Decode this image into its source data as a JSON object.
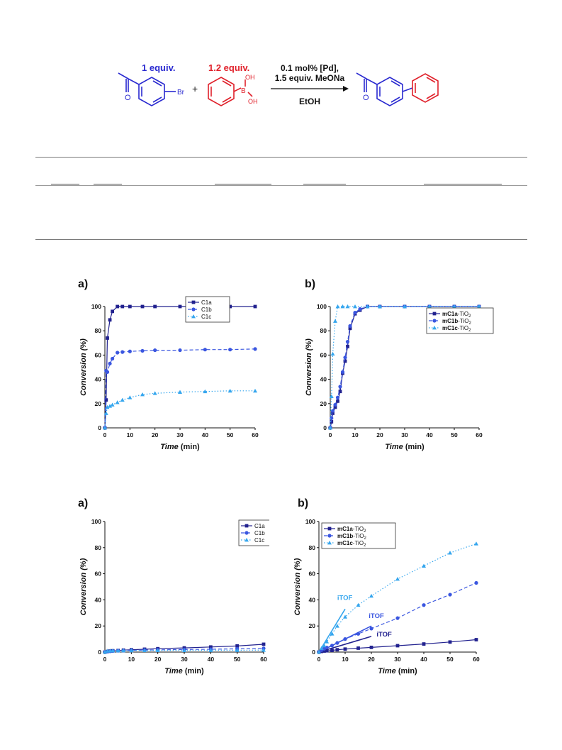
{
  "scheme": {
    "reactant1_equiv": "1 equiv.",
    "reactant1_label": "Br",
    "plus": "+",
    "reactant2_equiv": "1.2 equiv.",
    "reactant2_label_oh": "OH",
    "reactant2_label_b": "B",
    "carbonyl_o": "O",
    "conditions_line1": "0.1 mol% [Pd],",
    "conditions_line2": "1.5 equiv. MeONa",
    "solvent": "EtOH",
    "colors": {
      "reactant1": "#2a2ad0",
      "reactant2": "#e0202a"
    }
  },
  "charts": [
    {
      "panel_label": "a)",
      "xlabel": "Time",
      "xunit": "(min)",
      "ylabel": "Conversion (%)",
      "chart_data": {
        "type": "line",
        "xlim": [
          0,
          60
        ],
        "ylim": [
          0,
          100
        ],
        "xticks": [
          0,
          10,
          20,
          30,
          40,
          50,
          60
        ],
        "yticks": [
          0,
          20,
          40,
          60,
          80,
          100
        ],
        "legend_position": "top-right",
        "series": [
          {
            "name": "C1a",
            "color": "#22228f",
            "style": "solid",
            "marker": "square",
            "x": [
              0,
              0.5,
              1,
              2,
              3,
              5,
              7,
              10,
              15,
              20,
              30,
              40,
              50,
              60
            ],
            "y": [
              0,
              23,
              74,
              89,
              96,
              100,
              100,
              100,
              100,
              100,
              100,
              100,
              100,
              100
            ]
          },
          {
            "name": "C1b",
            "color": "#3a56e0",
            "style": "dashed",
            "marker": "circle",
            "x": [
              0,
              0.5,
              1,
              2,
              3,
              5,
              7,
              10,
              15,
              20,
              30,
              40,
              50,
              60
            ],
            "y": [
              0,
              47,
              46,
              53,
              57,
              62,
              62.5,
              63,
              63.5,
              64,
              64,
              64.5,
              64.5,
              65
            ]
          },
          {
            "name": "C1c",
            "color": "#35a6ee",
            "style": "dotted",
            "marker": "triangle",
            "x": [
              0,
              0.5,
              1,
              2,
              3,
              5,
              7,
              10,
              15,
              20,
              30,
              40,
              50,
              60
            ],
            "y": [
              0,
              12,
              17,
              18,
              19,
              21,
              23,
              25,
              27.5,
              28.5,
              29.5,
              30,
              30.5,
              30.5
            ]
          }
        ]
      }
    },
    {
      "panel_label": "b)",
      "xlabel": "Time",
      "xunit": "(min)",
      "ylabel": "Conversion (%)",
      "chart_data": {
        "type": "line",
        "xlim": [
          0,
          60
        ],
        "ylim": [
          0,
          100
        ],
        "xticks": [
          0,
          10,
          20,
          30,
          40,
          50,
          60
        ],
        "yticks": [
          0,
          20,
          40,
          60,
          80,
          100
        ],
        "legend_position": "center-right",
        "series": [
          {
            "name": "mC1a-TiO",
            "name_sub": "2",
            "color": "#22228f",
            "style": "solid",
            "marker": "square",
            "x": [
              0,
              0.5,
              1,
              2,
              3,
              4,
              5,
              6,
              7,
              8,
              10,
              12,
              15,
              20,
              30,
              40,
              50,
              60
            ],
            "y": [
              0,
              5,
              12,
              17,
              22,
              30,
              45,
              55,
              67,
              82,
              94,
              97,
              100,
              100,
              100,
              100,
              100,
              100
            ]
          },
          {
            "name": "mC1b-TiO",
            "name_sub": "2",
            "color": "#3a56e0",
            "style": "dashed",
            "marker": "circle",
            "x": [
              0,
              0.5,
              1,
              2,
              3,
              4,
              5,
              6,
              7,
              8,
              10,
              12,
              15,
              20,
              30,
              40,
              50,
              60
            ],
            "y": [
              0,
              8,
              14,
              19,
              25,
              34,
              46,
              58,
              71,
              84,
              95,
              98,
              100,
              100,
              100,
              100,
              100,
              100
            ]
          },
          {
            "name": "mC1c-TiO",
            "name_sub": "2",
            "color": "#35a6ee",
            "style": "dotted",
            "marker": "triangle",
            "x": [
              0,
              0.5,
              1,
              2,
              3,
              5,
              7,
              10,
              15,
              20,
              30,
              40,
              50,
              60
            ],
            "y": [
              0,
              26,
              61,
              88,
              100,
              100,
              100,
              100,
              100,
              100,
              100,
              100,
              100,
              100
            ]
          }
        ]
      }
    },
    {
      "panel_label": "a)",
      "xlabel": "Time",
      "xunit": "(min)",
      "ylabel": "Conversion (%)",
      "chart_data": {
        "type": "line",
        "xlim": [
          0,
          60
        ],
        "ylim": [
          0,
          100
        ],
        "xticks": [
          0,
          10,
          20,
          30,
          40,
          50,
          60
        ],
        "yticks": [
          0,
          20,
          40,
          60,
          80,
          100
        ],
        "legend_position": "top-right",
        "series": [
          {
            "name": "C1a",
            "color": "#22228f",
            "style": "solid",
            "marker": "square",
            "x": [
              0,
              1,
              2,
              3,
              5,
              7,
              10,
              15,
              20,
              30,
              40,
              50,
              60
            ],
            "y": [
              0,
              0.5,
              0.8,
              1,
              1.2,
              1.5,
              1.8,
              2.2,
              2.6,
              3.2,
              3.9,
              4.7,
              6
            ]
          },
          {
            "name": "C1b",
            "color": "#3a56e0",
            "style": "dashed",
            "marker": "circle",
            "x": [
              0,
              1,
              2,
              3,
              5,
              7,
              10,
              15,
              20,
              30,
              40,
              50,
              60
            ],
            "y": [
              0,
              0.4,
              0.6,
              0.8,
              1,
              1.1,
              1.3,
              1.5,
              1.7,
              2,
              2.2,
              2.5,
              2.8
            ]
          },
          {
            "name": "C1c",
            "color": "#35a6ee",
            "style": "dotted",
            "marker": "triangle",
            "x": [
              0,
              1,
              2,
              3,
              5,
              7,
              10,
              15,
              20,
              30,
              40,
              50,
              60
            ],
            "y": [
              0,
              0.9,
              1,
              1.1,
              1.1,
              1.2,
              1.2,
              1.3,
              1.3,
              1.3,
              1.4,
              1.4,
              1.5
            ]
          }
        ]
      }
    },
    {
      "panel_label": "b)",
      "xlabel": "Time",
      "xunit": "(min)",
      "ylabel": "Conversion (%)",
      "chart_data": {
        "type": "line",
        "xlim": [
          0,
          60
        ],
        "ylim": [
          0,
          100
        ],
        "xticks": [
          0,
          10,
          20,
          30,
          40,
          50,
          60
        ],
        "yticks": [
          0,
          20,
          40,
          60,
          80,
          100
        ],
        "legend_position": "top-left",
        "series": [
          {
            "name": "mC1a-TiO",
            "name_sub": "2",
            "color": "#22228f",
            "style": "solid",
            "marker": "square",
            "x": [
              0,
              1,
              2,
              3,
              5,
              7,
              10,
              15,
              20,
              30,
              40,
              50,
              60
            ],
            "y": [
              0,
              0.5,
              0.8,
              1,
              1.3,
              1.8,
              2.3,
              3,
              3.6,
              4.9,
              6.2,
              7.7,
              9.5
            ]
          },
          {
            "name": "mC1b-TiO",
            "name_sub": "2",
            "color": "#3a56e0",
            "style": "dashed",
            "marker": "circle",
            "x": [
              0,
              1,
              2,
              3,
              5,
              7,
              10,
              15,
              20,
              30,
              40,
              50,
              60
            ],
            "y": [
              0,
              1.5,
              2.5,
              3.5,
              5,
              7,
              10,
              14,
              18,
              26,
              36,
              44,
              53
            ]
          },
          {
            "name": "mC1c-TiO",
            "name_sub": "2",
            "color": "#35a6ee",
            "style": "dotted",
            "marker": "triangle",
            "x": [
              0,
              1,
              2,
              3,
              5,
              7,
              10,
              15,
              20,
              30,
              40,
              50,
              60
            ],
            "y": [
              0,
              3,
              5,
              8,
              14,
              20,
              27,
              36,
              43,
              56,
              66,
              76,
              83
            ]
          }
        ],
        "annotations": [
          {
            "text": "iTOF",
            "color": "#35a6ee",
            "line": [
              [
                0,
                0
              ],
              [
                10,
                33
              ]
            ],
            "at": [
              7,
              40
            ]
          },
          {
            "text": "iTOF",
            "color": "#3a56e0",
            "line": [
              [
                0,
                0
              ],
              [
                20,
                20
              ]
            ],
            "at": [
              19,
              26
            ]
          },
          {
            "text": "iTOF",
            "color": "#22228f",
            "line": [
              [
                0,
                0
              ],
              [
                20,
                12
              ]
            ],
            "at": [
              22,
              12
            ]
          }
        ]
      }
    }
  ]
}
